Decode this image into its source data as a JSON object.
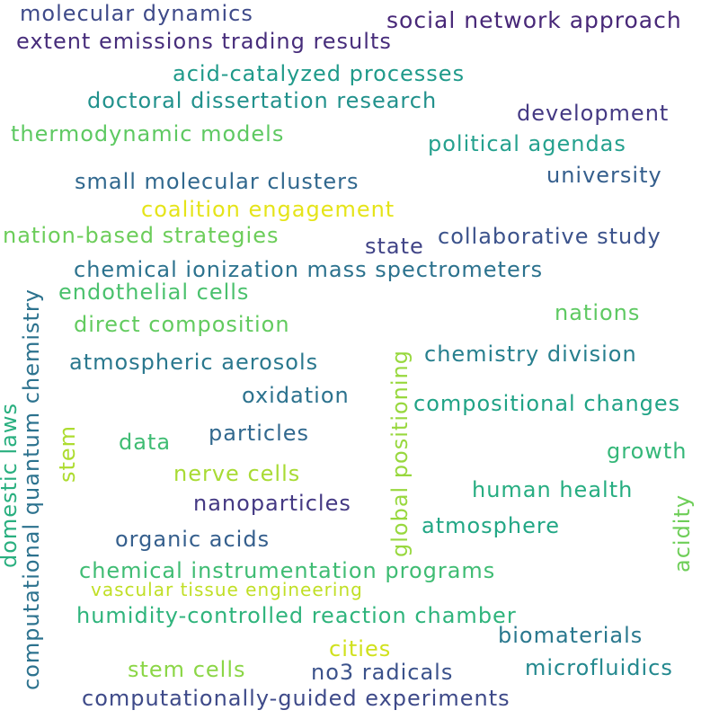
{
  "words": [
    {
      "text": "molecular dynamics",
      "color": "#3e4a89"
    },
    {
      "text": "social network approach",
      "color": "#482878"
    },
    {
      "text": "extent emissions trading results",
      "color": "#472d7b"
    },
    {
      "text": "acid-catalyzed processes",
      "color": "#1f9a8a"
    },
    {
      "text": "doctoral dissertation research",
      "color": "#21918c"
    },
    {
      "text": "development",
      "color": "#443983"
    },
    {
      "text": "thermodynamic models",
      "color": "#5ec962"
    },
    {
      "text": "political agendas",
      "color": "#25a18e"
    },
    {
      "text": "university",
      "color": "#355f8d"
    },
    {
      "text": "small molecular clusters",
      "color": "#31688e"
    },
    {
      "text": "coalition engagement",
      "color": "#e5e419"
    },
    {
      "text": "nation-based strategies",
      "color": "#6ccd5a"
    },
    {
      "text": "state",
      "color": "#414487"
    },
    {
      "text": "collaborative study",
      "color": "#3b528b"
    },
    {
      "text": "chemical ionization mass spectrometers",
      "color": "#2c728e"
    },
    {
      "text": "endothelial cells",
      "color": "#4ac16d"
    },
    {
      "text": "nations",
      "color": "#5ec962"
    },
    {
      "text": "direct composition",
      "color": "#62cb5f"
    },
    {
      "text": "chemistry division",
      "color": "#277f8e"
    },
    {
      "text": "atmospheric aerosols",
      "color": "#2a788e"
    },
    {
      "text": "oxidation",
      "color": "#2c728e"
    },
    {
      "text": "compositional changes",
      "color": "#20a386"
    },
    {
      "text": "data",
      "color": "#3fbc73"
    },
    {
      "text": "particles",
      "color": "#31688e"
    },
    {
      "text": "growth",
      "color": "#35b779"
    },
    {
      "text": "nerve cells",
      "color": "#a8db34"
    },
    {
      "text": "human health",
      "color": "#26ad81"
    },
    {
      "text": "nanoparticles",
      "color": "#443983"
    },
    {
      "text": "atmosphere",
      "color": "#22a785"
    },
    {
      "text": "organic acids",
      "color": "#355f8d"
    },
    {
      "text": "chemical instrumentation programs",
      "color": "#3fbc73"
    },
    {
      "text": "vascular tissue engineering",
      "color": "#c0df25"
    },
    {
      "text": "humidity-controlled reaction chamber",
      "color": "#2fb47c"
    },
    {
      "text": "biomaterials",
      "color": "#2a788e"
    },
    {
      "text": "cities",
      "color": "#d0e11c"
    },
    {
      "text": "stem cells",
      "color": "#8bd646"
    },
    {
      "text": "no3 radicals",
      "color": "#3b528b"
    },
    {
      "text": "microfluidics",
      "color": "#23888e"
    },
    {
      "text": "computationally-guided experiments",
      "color": "#3e4a89"
    },
    {
      "text": "computational quantum chemistry",
      "color": "#2c728e"
    },
    {
      "text": "domestic laws",
      "color": "#29af7f"
    },
    {
      "text": "stem",
      "color": "#addc30"
    },
    {
      "text": "global positioning",
      "color": "#98d83e"
    },
    {
      "text": "acidity",
      "color": "#6ece58"
    }
  ]
}
